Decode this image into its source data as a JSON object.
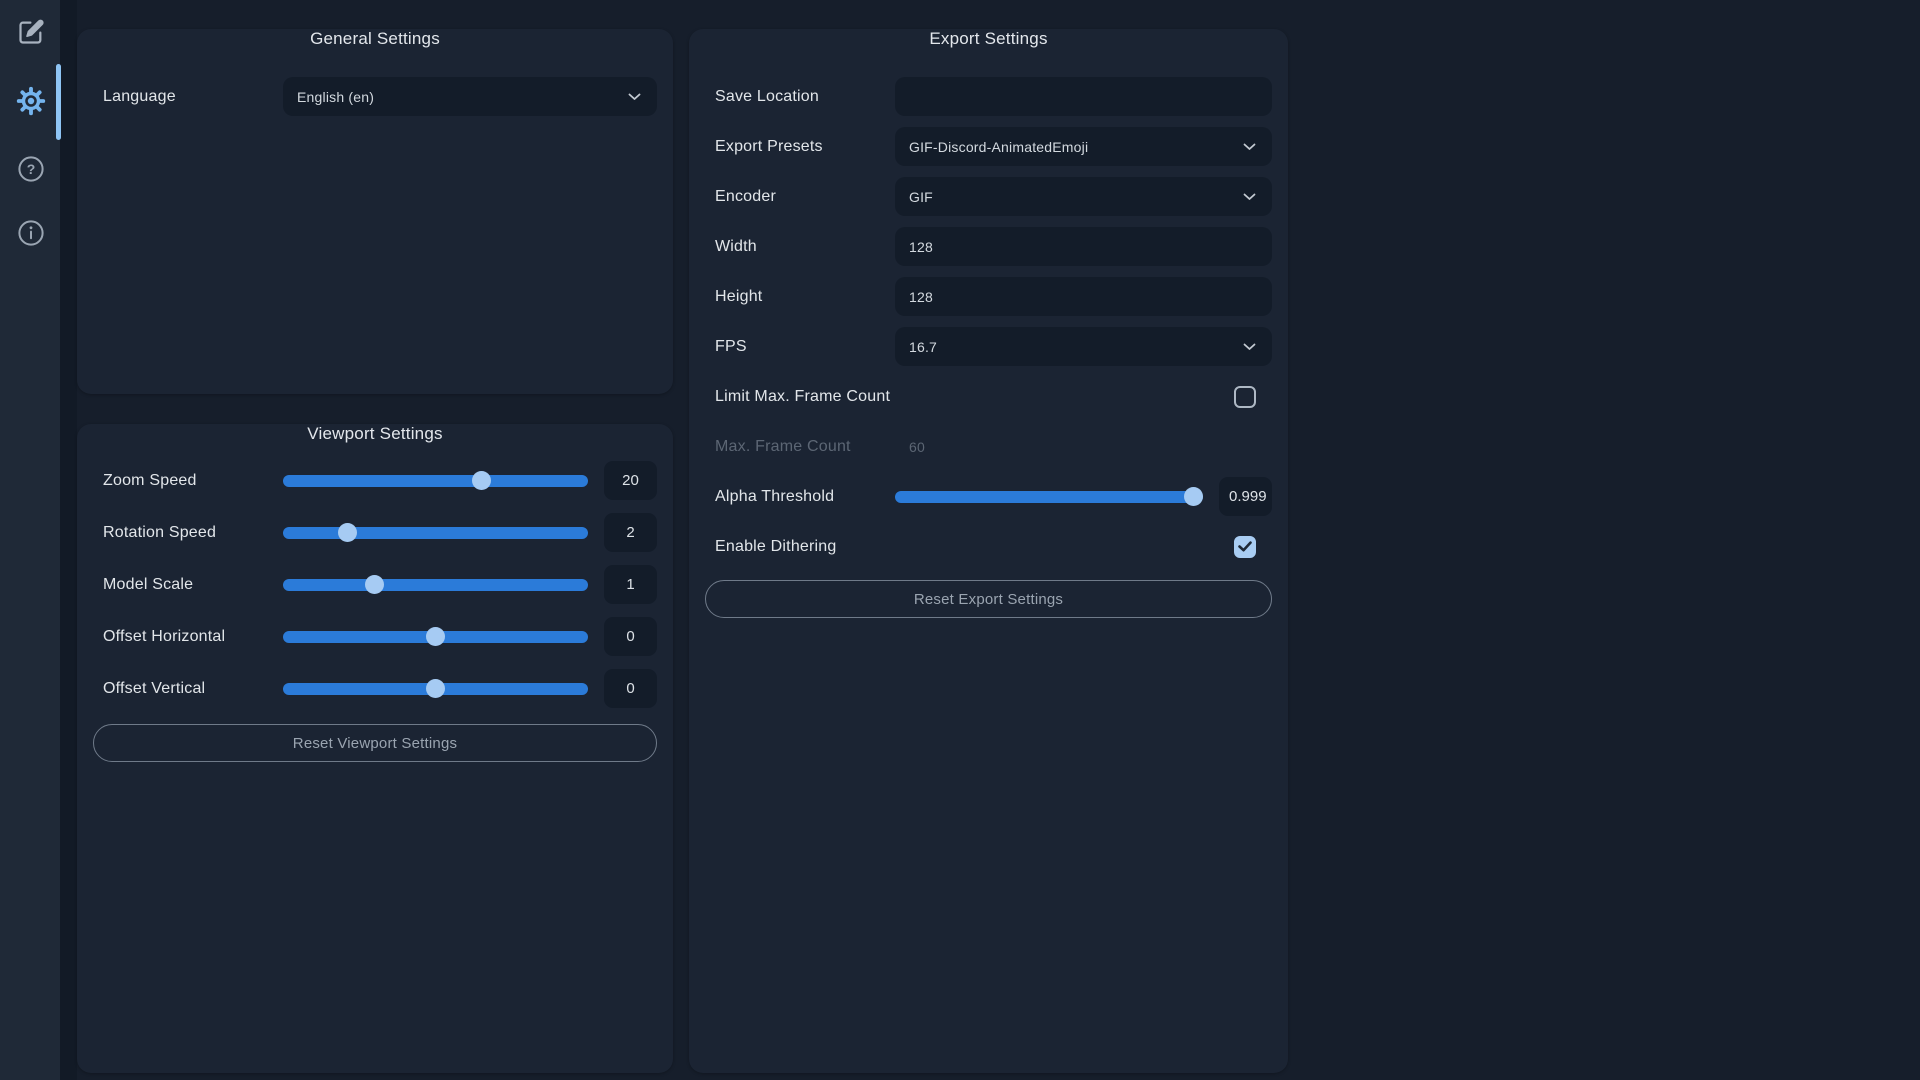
{
  "sidebar": {
    "items": [
      {
        "id": "edit",
        "icon": "pencil-square-icon",
        "active": false
      },
      {
        "id": "settings",
        "icon": "gear-icon",
        "active": true
      },
      {
        "id": "help",
        "icon": "question-circle-icon",
        "active": false
      },
      {
        "id": "info",
        "icon": "info-circle-icon",
        "active": false
      }
    ]
  },
  "panels": {
    "general": {
      "title": "General Settings",
      "rows": [
        {
          "label": "Language",
          "type": "select",
          "value": "English (en)"
        }
      ]
    },
    "viewport": {
      "title": "Viewport Settings",
      "rows": [
        {
          "label": "Zoom Speed",
          "type": "slider",
          "value": "20",
          "percent": 65
        },
        {
          "label": "Rotation Speed",
          "type": "slider",
          "value": "2",
          "percent": 21
        },
        {
          "label": "Model Scale",
          "type": "slider",
          "value": "1",
          "percent": 30
        },
        {
          "label": "Offset Horizontal",
          "type": "slider",
          "value": "0",
          "percent": 50
        },
        {
          "label": "Offset Vertical",
          "type": "slider",
          "value": "0",
          "percent": 50
        }
      ],
      "reset_label": "Reset Viewport Settings"
    },
    "export": {
      "title": "Export Settings",
      "rows": [
        {
          "label": "Save Location",
          "type": "text",
          "value": ""
        },
        {
          "label": "Export Presets",
          "type": "select",
          "value": "GIF-Discord-AnimatedEmoji"
        },
        {
          "label": "Encoder",
          "type": "select",
          "value": "GIF"
        },
        {
          "label": "Width",
          "type": "text",
          "value": "128"
        },
        {
          "label": "Height",
          "type": "text",
          "value": "128"
        },
        {
          "label": "FPS",
          "type": "select",
          "value": "16.7"
        },
        {
          "label": "Limit Max. Frame Count",
          "type": "checkbox",
          "checked": false
        },
        {
          "label": "Max. Frame Count",
          "type": "text",
          "value": "60",
          "disabled": true
        },
        {
          "label": "Alpha Threshold",
          "type": "slider",
          "value": "0.999",
          "percent": 97,
          "clip": true
        },
        {
          "label": "Enable Dithering",
          "type": "checkbox",
          "checked": true
        }
      ],
      "reset_label": "Reset Export Settings"
    }
  },
  "colors": {
    "slider_track": "#2b7bd9",
    "slider_thumb": "#a6cbf3",
    "active_icon": "#74b4ee",
    "accent_bar": "#8ec4f4",
    "checkbox_checked": "#a9cdf3"
  }
}
